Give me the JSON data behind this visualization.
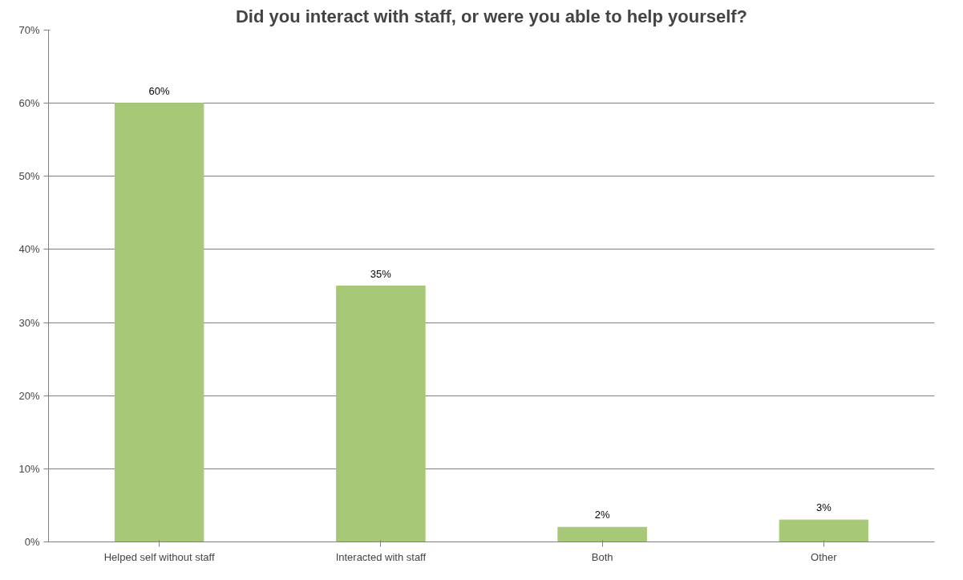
{
  "chart_data": {
    "type": "bar",
    "title": "Did you interact with staff, or were you able to help yourself?",
    "categories": [
      "Helped self without staff",
      "Interacted with staff",
      "Both",
      "Other"
    ],
    "values": [
      60,
      35,
      2,
      3
    ],
    "value_labels": [
      "60%",
      "35%",
      "2%",
      "3%"
    ],
    "color": "#a6c877",
    "ylim": [
      0,
      70
    ],
    "yticks": [
      {
        "value": 0,
        "label": "0%"
      },
      {
        "value": 10,
        "label": "10%"
      },
      {
        "value": 20,
        "label": "20%"
      },
      {
        "value": 30,
        "label": "30%"
      },
      {
        "value": 40,
        "label": "40%"
      },
      {
        "value": 50,
        "label": "50%"
      },
      {
        "value": 60,
        "label": "60%"
      },
      {
        "value": 70,
        "label": "70%"
      }
    ],
    "grid": "y"
  }
}
